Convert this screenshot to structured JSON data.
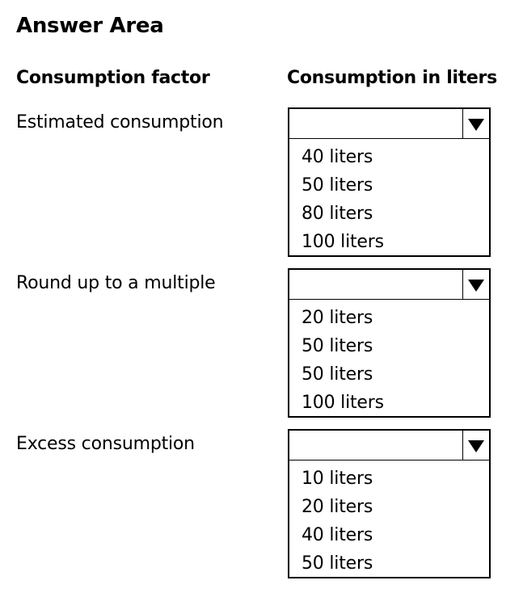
{
  "title": "Answer Area",
  "headers": {
    "factor": "Consumption factor",
    "liters": "Consumption in liters"
  },
  "rows": [
    {
      "label": "Estimated consumption",
      "selected": "",
      "options": [
        "40 liters",
        "50 liters",
        "80 liters",
        "100 liters"
      ]
    },
    {
      "label": "Round up to a multiple",
      "selected": "",
      "options": [
        "20 liters",
        "50 liters",
        "50 liters",
        "100 liters"
      ]
    },
    {
      "label": "Excess consumption",
      "selected": "",
      "options": [
        "10 liters",
        "20 liters",
        "40 liters",
        "50 liters"
      ]
    }
  ],
  "icons": {
    "dropdown": "triangle-down-icon"
  }
}
